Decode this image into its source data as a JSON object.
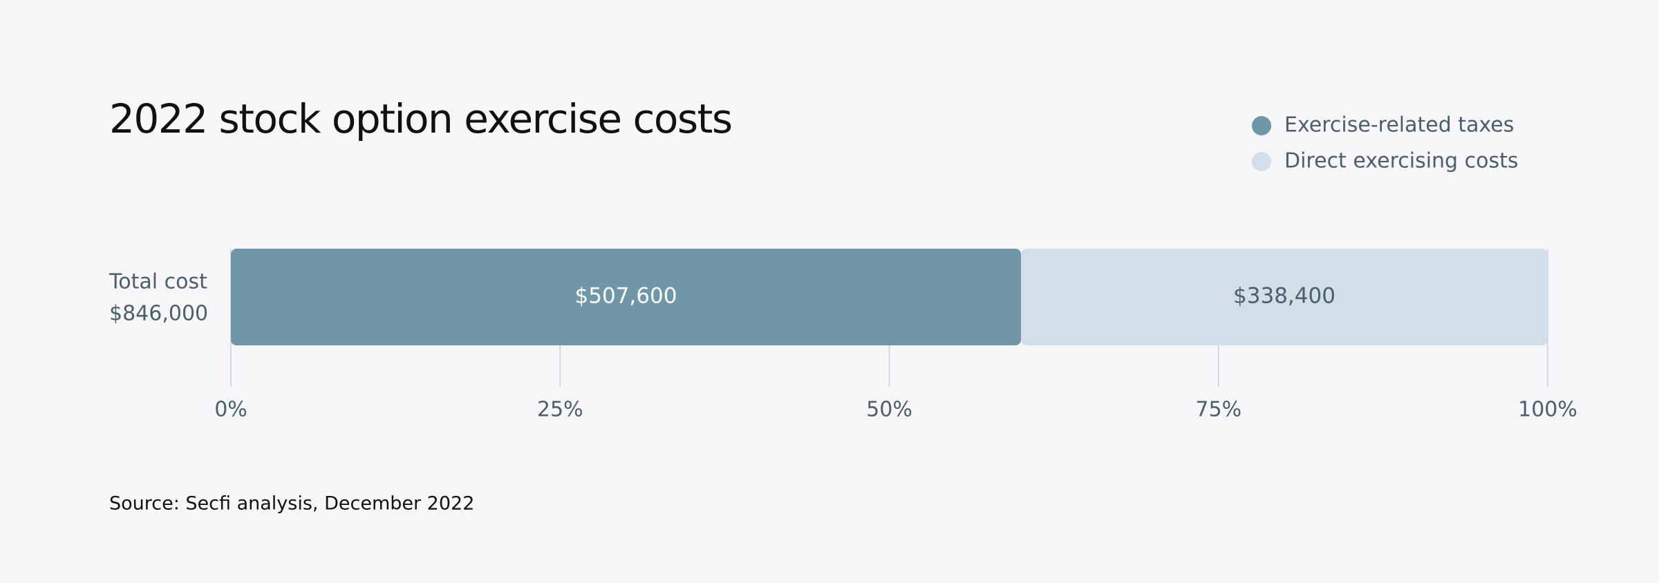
{
  "chart_data": {
    "type": "stacked-bar-horizontal",
    "title": "2022 stock option exercise costs",
    "categories": [
      "Total cost"
    ],
    "category_sublabels": [
      "$846,000"
    ],
    "series": [
      {
        "name": "Exercise-related taxes",
        "color": "#7097a8",
        "values": [
          507600
        ],
        "value_labels": [
          "$507,600"
        ]
      },
      {
        "name": "Direct exercising costs",
        "color": "#d2dfe9",
        "values": [
          338400
        ],
        "value_labels": [
          "$338,400"
        ]
      }
    ],
    "xlim": [
      0,
      846000
    ],
    "xticks": [
      {
        "value": 0,
        "label": "0%"
      },
      {
        "value": 211500,
        "label": "25%"
      },
      {
        "value": 423000,
        "label": "50%"
      },
      {
        "value": 634500,
        "label": "75%"
      },
      {
        "value": 846000,
        "label": "100%"
      }
    ],
    "grid": true,
    "legend": "top-right",
    "source": "Source: Secfi analysis, December 2022"
  }
}
